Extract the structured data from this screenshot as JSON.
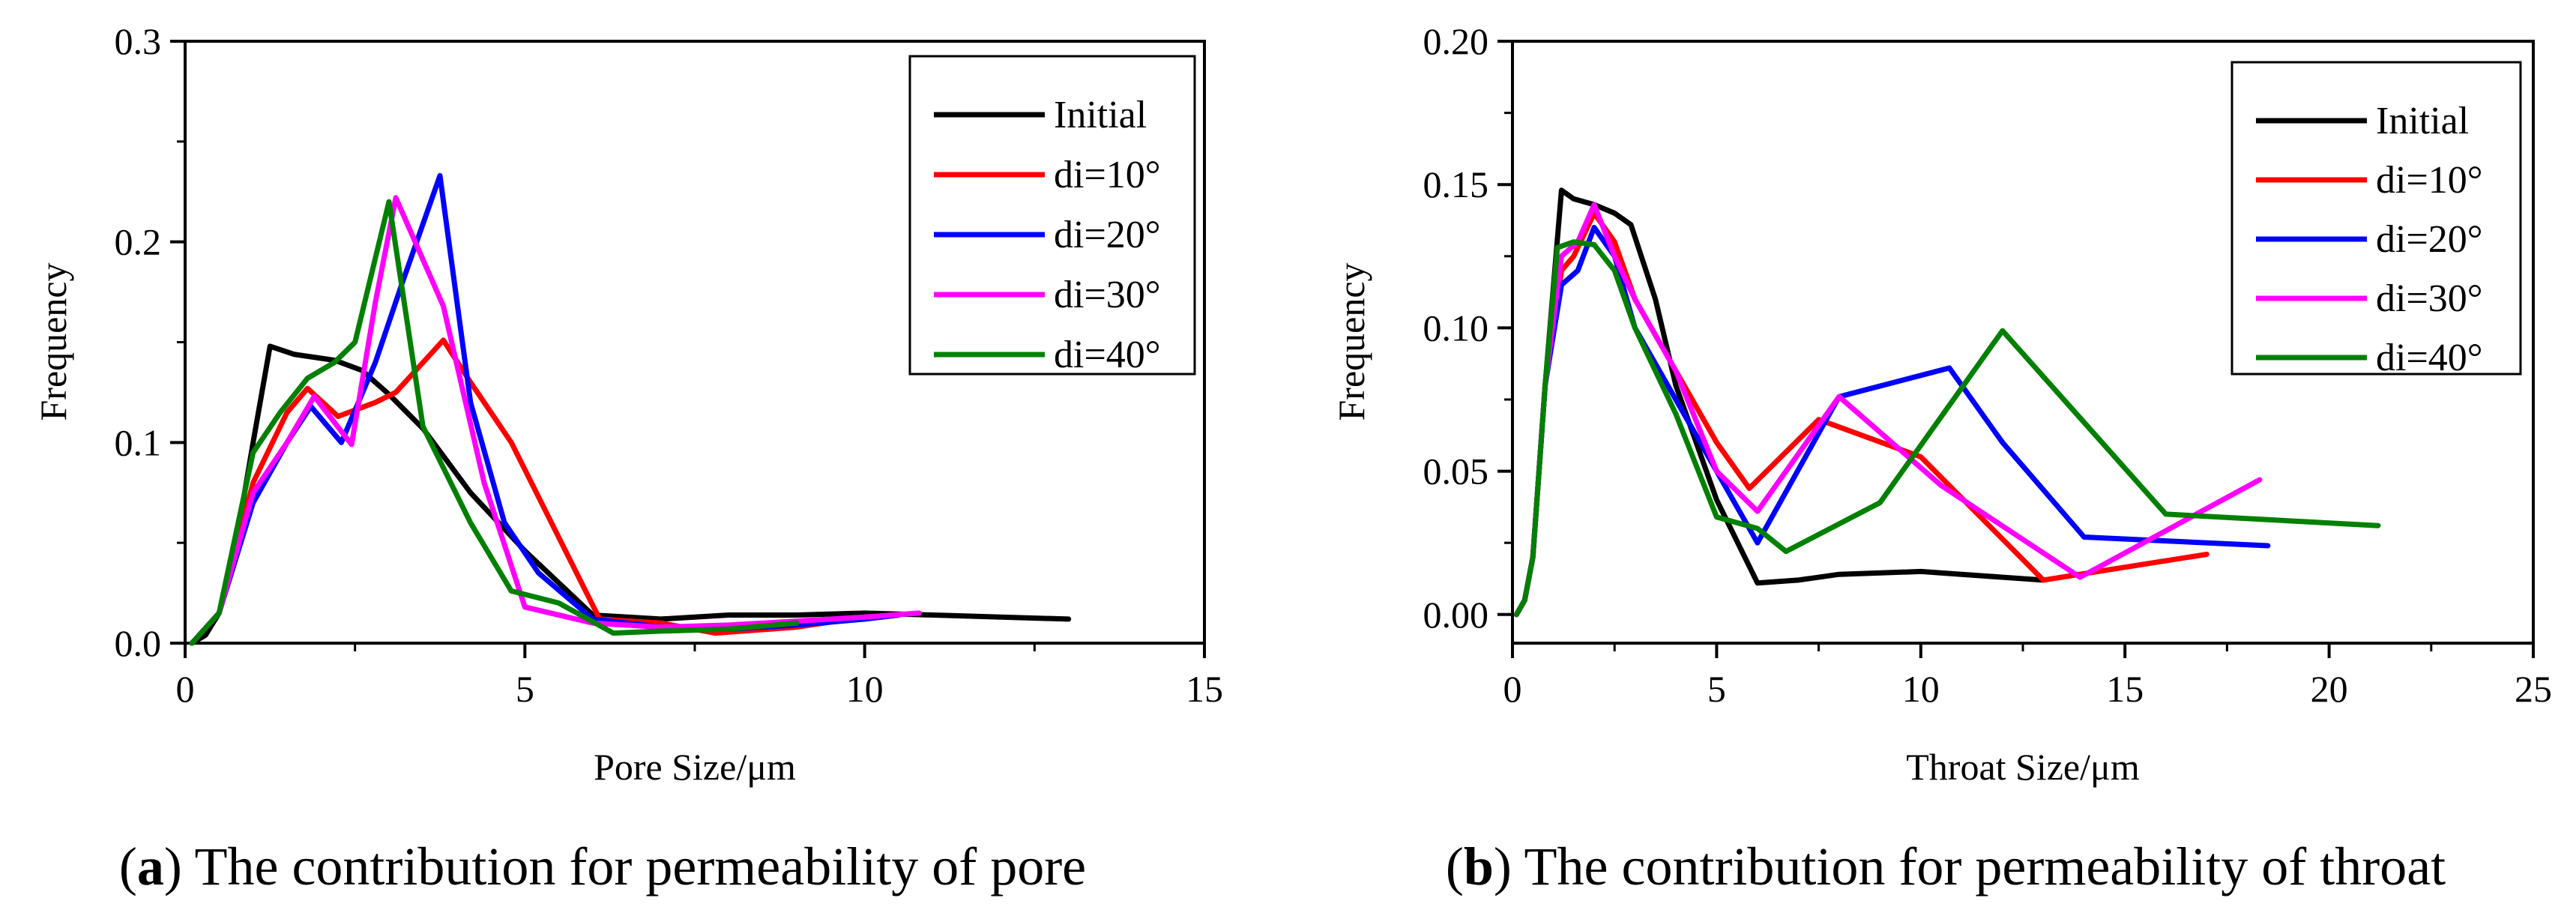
{
  "chart_data": [
    {
      "id": "a",
      "type": "line",
      "caption_letter": "a",
      "caption_text": "The contribution for permeability of pore",
      "xlabel": "Pore Size/μm",
      "ylabel": "Frequency",
      "xlim": [
        0,
        15
      ],
      "ylim": [
        0,
        0.3
      ],
      "xticks": [
        0,
        5,
        10,
        15
      ],
      "xtick_labels": [
        "0",
        "5",
        "10",
        "15"
      ],
      "yticks": [
        0.0,
        0.1,
        0.2,
        0.3
      ],
      "ytick_labels": [
        "0.0",
        "0.1",
        "0.2",
        "0.3"
      ],
      "legend_position": "top-right",
      "series": [
        {
          "name": "Initial",
          "color": "#000000",
          "x": [
            0.1,
            0.3,
            0.5,
            0.7,
            1.0,
            1.25,
            1.6,
            2.2,
            2.6,
            3.0,
            3.5,
            4.2,
            5.0,
            6.0,
            7.0,
            8.0,
            9.0,
            10.0,
            11.0,
            13.0
          ],
          "y": [
            0.0,
            0.004,
            0.015,
            0.04,
            0.1,
            0.148,
            0.144,
            0.141,
            0.136,
            0.124,
            0.107,
            0.075,
            0.046,
            0.014,
            0.012,
            0.014,
            0.014,
            0.015,
            0.014,
            0.012
          ]
        },
        {
          "name": "di=10°",
          "color": "#ff0000",
          "x": [
            0.1,
            0.5,
            1.0,
            1.5,
            1.8,
            2.25,
            2.8,
            3.1,
            3.8,
            4.2,
            4.8,
            6.1,
            7.0,
            7.8,
            9.0,
            10.0,
            10.5
          ],
          "y": [
            0.0,
            0.015,
            0.08,
            0.115,
            0.127,
            0.113,
            0.12,
            0.125,
            0.151,
            0.13,
            0.1,
            0.012,
            0.01,
            0.005,
            0.008,
            0.013,
            0.014
          ]
        },
        {
          "name": "di=20°",
          "color": "#0000ff",
          "x": [
            0.1,
            0.5,
            1.0,
            1.5,
            1.85,
            2.3,
            2.8,
            3.2,
            3.75,
            4.2,
            4.7,
            5.2,
            6.0,
            7.0,
            8.0,
            9.0,
            10.0,
            10.5
          ],
          "y": [
            0.0,
            0.015,
            0.07,
            0.1,
            0.118,
            0.1,
            0.14,
            0.18,
            0.233,
            0.12,
            0.06,
            0.035,
            0.012,
            0.008,
            0.007,
            0.009,
            0.012,
            0.014
          ]
        },
        {
          "name": "di=30°",
          "color": "#ff00ff",
          "x": [
            0.1,
            0.5,
            1.0,
            1.5,
            1.9,
            2.45,
            2.8,
            3.1,
            3.8,
            4.4,
            5.0,
            6.0,
            7.0,
            8.0,
            9.0,
            10.0,
            10.8
          ],
          "y": [
            0.0,
            0.015,
            0.075,
            0.1,
            0.123,
            0.099,
            0.17,
            0.222,
            0.168,
            0.08,
            0.018,
            0.01,
            0.008,
            0.009,
            0.011,
            0.013,
            0.015
          ]
        },
        {
          "name": "di=40°",
          "color": "#008000",
          "x": [
            0.1,
            0.5,
            1.0,
            1.4,
            1.8,
            2.2,
            2.5,
            3.0,
            3.5,
            4.2,
            4.8,
            5.5,
            6.3,
            7.0,
            8.0,
            9.0
          ],
          "y": [
            0.0,
            0.015,
            0.095,
            0.115,
            0.132,
            0.14,
            0.15,
            0.22,
            0.108,
            0.06,
            0.026,
            0.02,
            0.005,
            0.006,
            0.007,
            0.01
          ]
        }
      ]
    },
    {
      "id": "b",
      "type": "line",
      "caption_letter": "b",
      "caption_text": "The contribution for permeability of throat",
      "xlabel": "Throat Size/μm",
      "ylabel": "Frequency",
      "xlim": [
        0,
        25
      ],
      "ylim": [
        -0.01,
        0.2
      ],
      "xticks": [
        0,
        5,
        10,
        15,
        20,
        25
      ],
      "xtick_labels": [
        "0",
        "5",
        "10",
        "15",
        "20",
        "25"
      ],
      "yticks": [
        0.0,
        0.05,
        0.1,
        0.15,
        0.2
      ],
      "ytick_labels": [
        "0.00",
        "0.05",
        "0.10",
        "0.15",
        "0.20"
      ],
      "legend_position": "top-right",
      "series": [
        {
          "name": "Initial",
          "color": "#000000",
          "x": [
            0.1,
            0.3,
            0.5,
            0.8,
            1.2,
            1.5,
            2.0,
            2.5,
            2.9,
            3.5,
            4.0,
            5.0,
            6.0,
            7.0,
            8.0,
            10.0,
            13.0
          ],
          "y": [
            0.0,
            0.005,
            0.02,
            0.08,
            0.148,
            0.145,
            0.143,
            0.14,
            0.136,
            0.11,
            0.08,
            0.04,
            0.011,
            0.012,
            0.014,
            0.015,
            0.012
          ]
        },
        {
          "name": "di=10°",
          "color": "#ff0000",
          "x": [
            0.1,
            0.3,
            0.5,
            0.8,
            1.2,
            1.5,
            2.0,
            2.5,
            3.0,
            4.0,
            5.0,
            5.8,
            7.5,
            10.0,
            13.0,
            17.0
          ],
          "y": [
            0.0,
            0.005,
            0.02,
            0.08,
            0.12,
            0.125,
            0.14,
            0.13,
            0.11,
            0.085,
            0.06,
            0.044,
            0.068,
            0.055,
            0.012,
            0.021
          ]
        },
        {
          "name": "di=20°",
          "color": "#0000ff",
          "x": [
            0.1,
            0.3,
            0.5,
            0.8,
            1.2,
            1.6,
            2.0,
            2.5,
            3.0,
            4.0,
            5.0,
            6.0,
            8.0,
            10.7,
            12.0,
            14.0,
            18.5
          ],
          "y": [
            0.0,
            0.005,
            0.02,
            0.08,
            0.115,
            0.12,
            0.135,
            0.125,
            0.1,
            0.075,
            0.05,
            0.025,
            0.076,
            0.086,
            0.06,
            0.027,
            0.024
          ]
        },
        {
          "name": "di=30°",
          "color": "#ff00ff",
          "x": [
            0.1,
            0.3,
            0.5,
            0.8,
            1.2,
            1.6,
            2.0,
            2.5,
            3.0,
            4.0,
            5.0,
            6.0,
            8.0,
            10.5,
            13.9,
            18.3
          ],
          "y": [
            0.0,
            0.005,
            0.02,
            0.08,
            0.125,
            0.13,
            0.143,
            0.125,
            0.11,
            0.085,
            0.05,
            0.036,
            0.076,
            0.045,
            0.013,
            0.047
          ]
        },
        {
          "name": "di=40°",
          "color": "#008000",
          "x": [
            0.1,
            0.3,
            0.5,
            0.8,
            1.1,
            1.5,
            2.0,
            2.5,
            3.0,
            4.0,
            5.0,
            6.0,
            6.7,
            9.0,
            12.0,
            16.0,
            21.2
          ],
          "y": [
            0.0,
            0.005,
            0.02,
            0.08,
            0.128,
            0.13,
            0.129,
            0.12,
            0.1,
            0.07,
            0.034,
            0.03,
            0.022,
            0.039,
            0.099,
            0.035,
            0.031
          ]
        }
      ]
    }
  ]
}
